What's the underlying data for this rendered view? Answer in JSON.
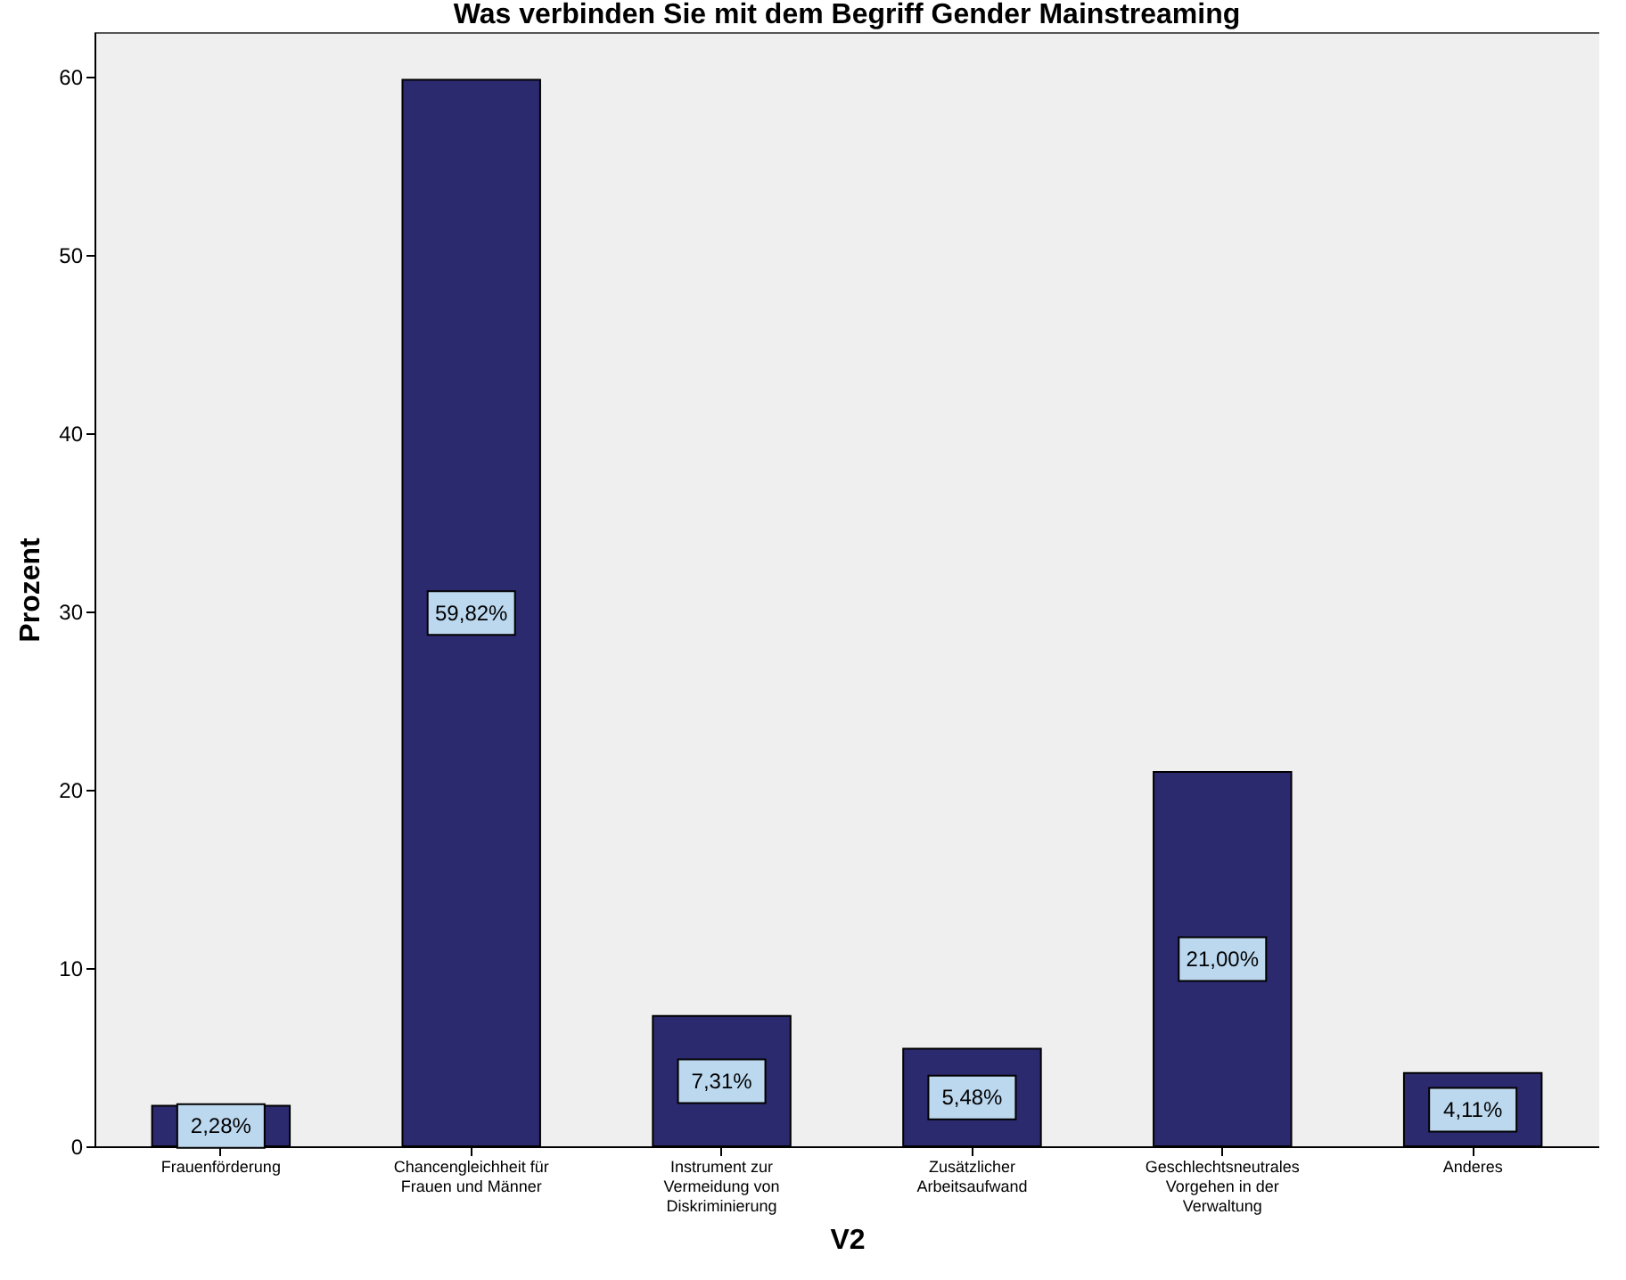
{
  "chart_data": {
    "type": "bar",
    "title": "Was verbinden Sie mit dem Begriff Gender Mainstreaming",
    "xlabel": "V2",
    "ylabel": "Prozent",
    "categories": [
      "Frauenförderung",
      "Chancengleichheit für\nFrauen und Männer",
      "Instrument zur\nVermeidung von\nDiskriminierung",
      "Zusätzlicher\nArbeitsaufwand",
      "Geschlechtsneutrales\nVorgehen in der\nVerwaltung",
      "Anderes"
    ],
    "values": [
      2.28,
      59.82,
      7.31,
      5.48,
      21.0,
      4.11
    ],
    "value_labels": [
      "2,28%",
      "59,82%",
      "7,31%",
      "5,48%",
      "21,00%",
      "4,11%"
    ],
    "color": "#2b2a6e",
    "ylim": [
      0,
      62.5
    ],
    "yticks": [
      0,
      10,
      20,
      30,
      40,
      50,
      60
    ],
    "grid": false
  }
}
